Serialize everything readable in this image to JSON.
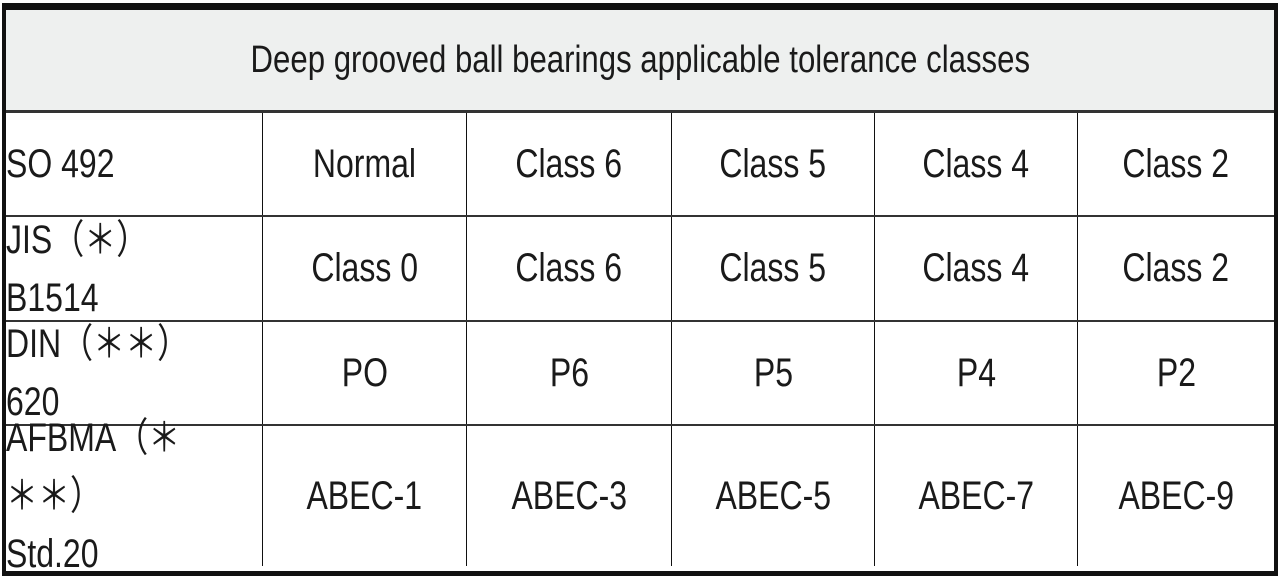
{
  "title": "Deep grooved ball bearings applicable tolerance classes",
  "rows": [
    {
      "standard": "SO 492",
      "values": [
        "Normal",
        "Class 6",
        "Class 5",
        "Class 4",
        "Class 2"
      ]
    },
    {
      "standard": "JIS（＊）B1514",
      "values": [
        "Class 0",
        "Class 6",
        "Class 5",
        "Class 4",
        "Class 2"
      ]
    },
    {
      "standard": "DIN（＊＊）620",
      "values": [
        "PO",
        "P6",
        "P5",
        "P4",
        "P2"
      ]
    },
    {
      "standard": "AFBMA（＊＊＊）\nStd.20",
      "values": [
        "ABEC-1",
        "ABEC-3",
        "ABEC-5",
        "ABEC-7",
        "ABEC-9"
      ]
    }
  ]
}
